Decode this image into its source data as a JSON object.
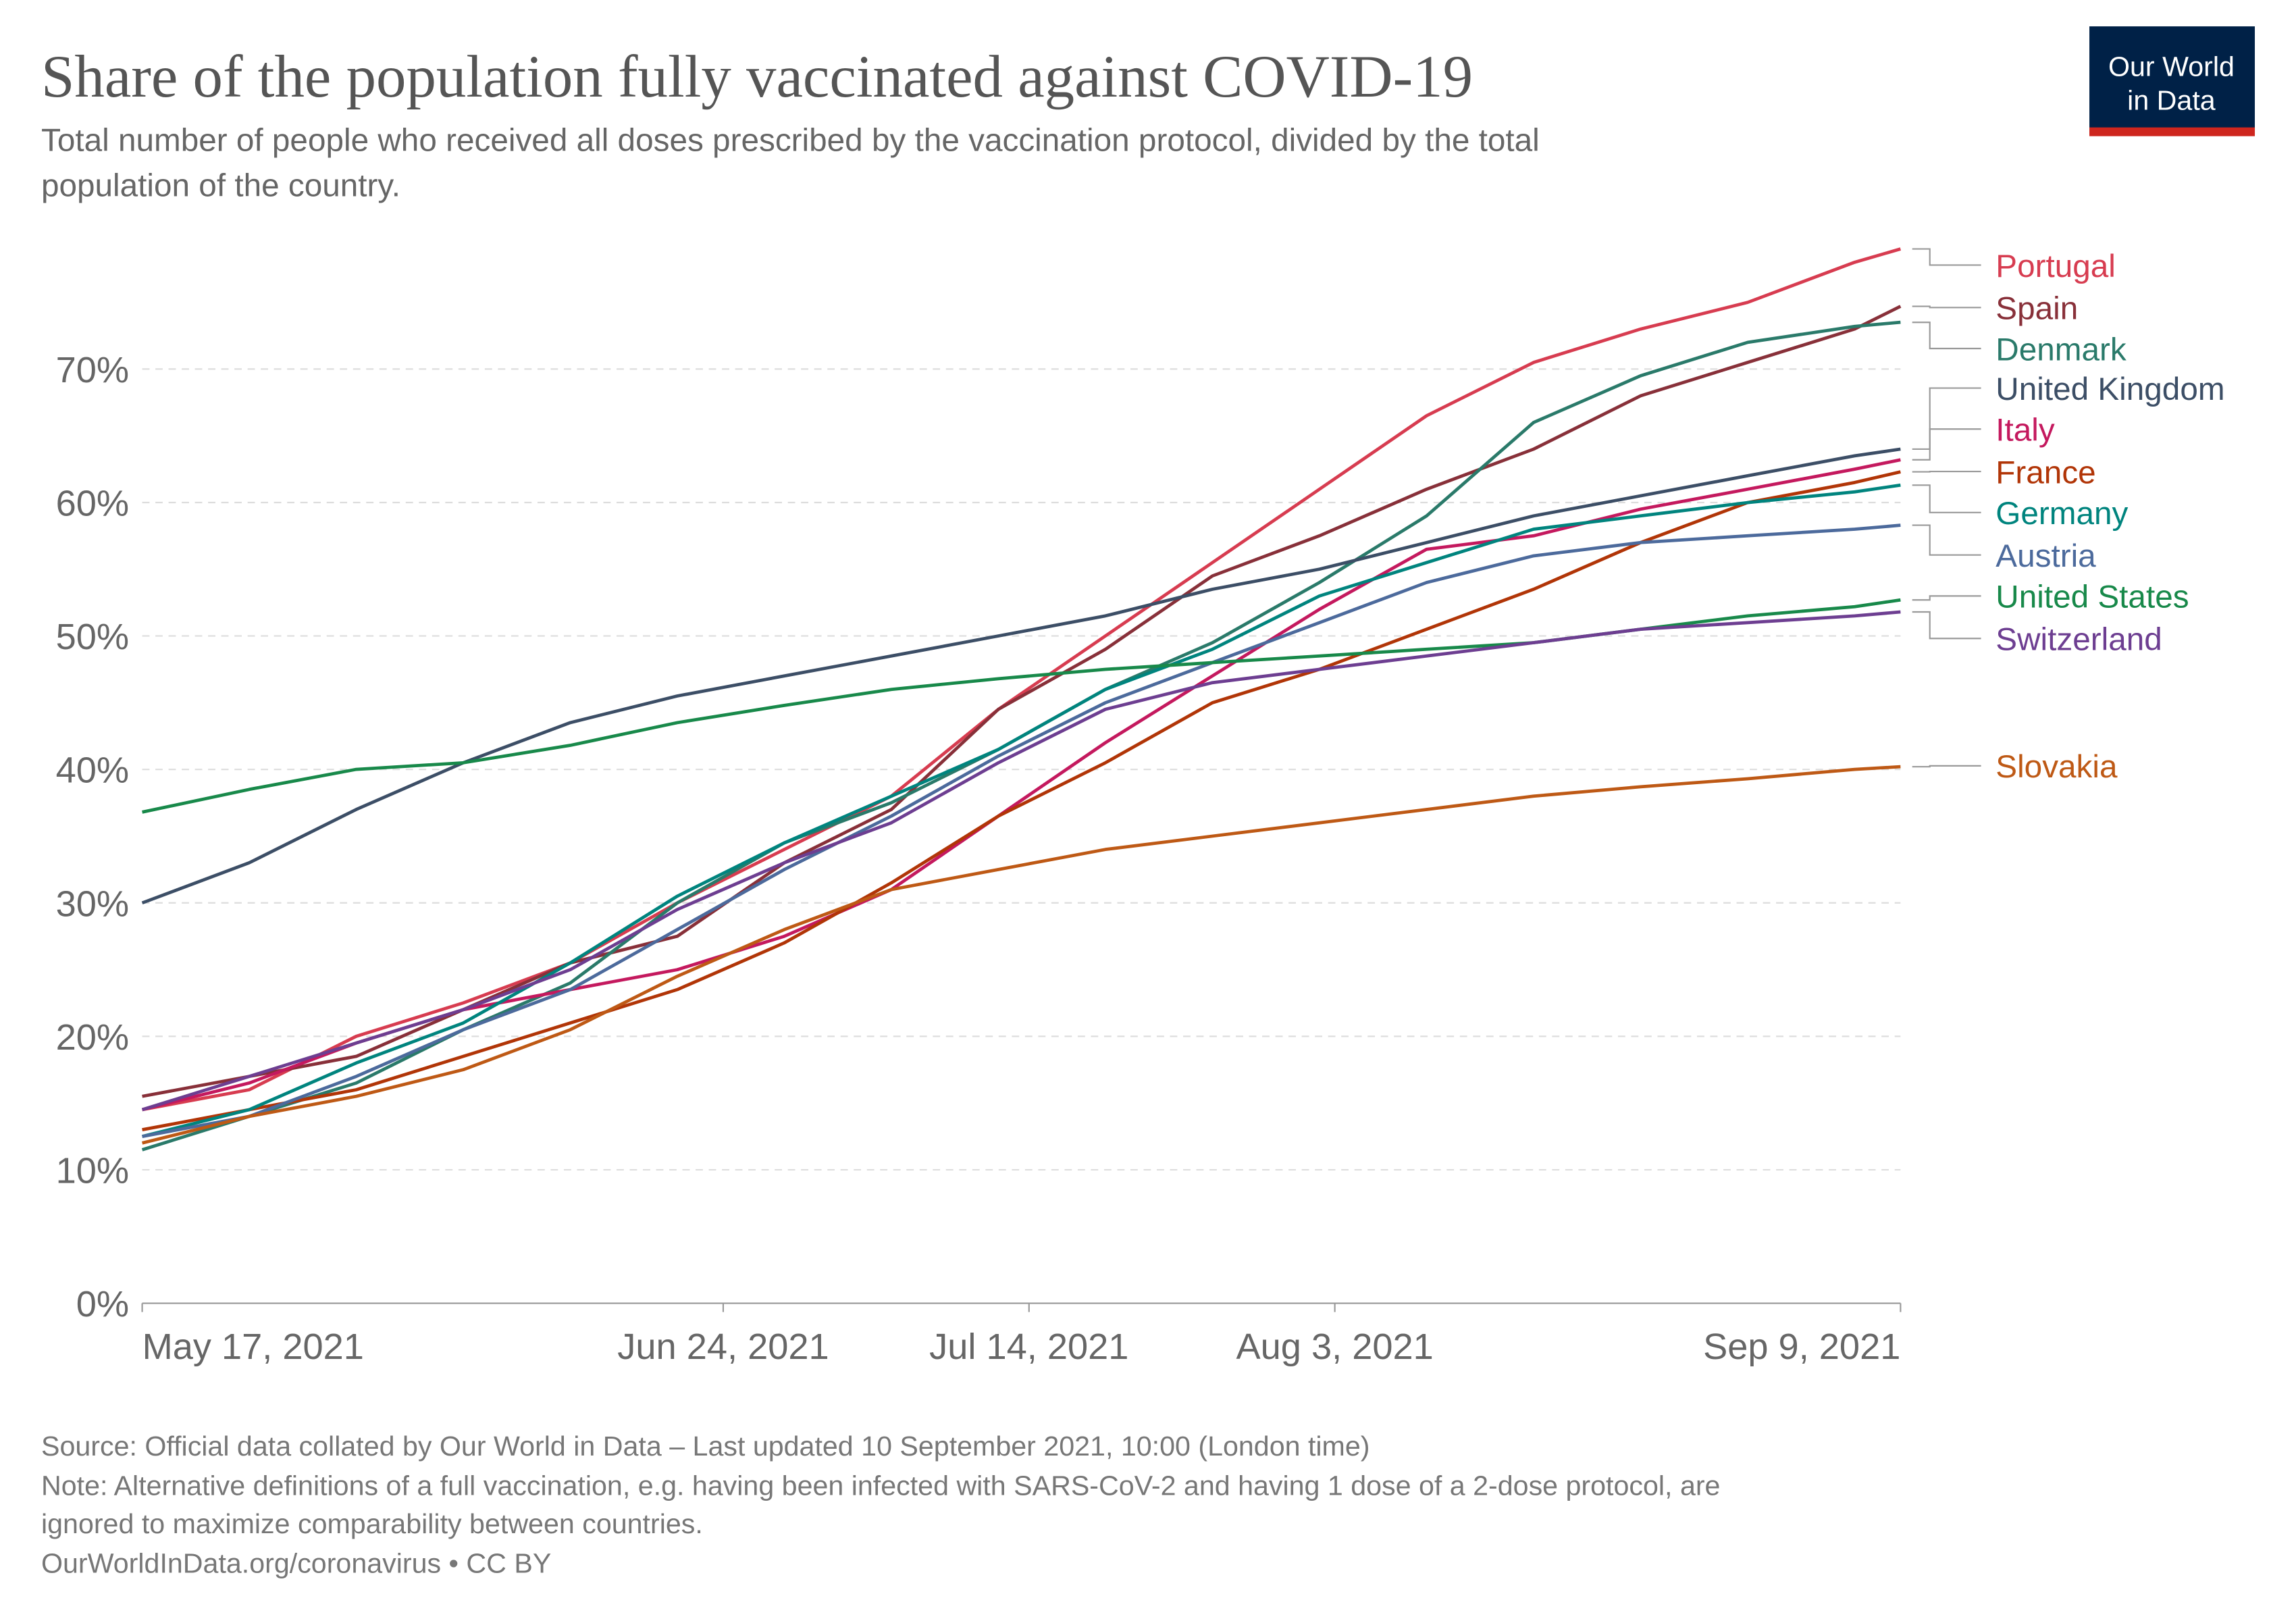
{
  "chart_data": {
    "type": "line",
    "title": "Share of the population fully vaccinated against COVID-19",
    "subtitle_lines": [
      "Total number of people who received all doses prescribed by the vaccination protocol, divided by the total",
      "population of the country."
    ],
    "logo_lines": [
      "Our World",
      "in Data"
    ],
    "source": "Source: Official data collated by Our World in Data – Last updated 10 September 2021, 10:00 (London time)",
    "note_lines": [
      "Note: Alternative definitions of a full vaccination, e.g. having been infected with SARS-CoV-2 and having 1 dose of a 2-dose protocol, are",
      "ignored to maximize comparability between countries."
    ],
    "footer": "OurWorldInData.org/coronavirus • CC BY",
    "x": [
      "2021-05-17",
      "2021-05-24",
      "2021-05-31",
      "2021-06-07",
      "2021-06-14",
      "2021-06-21",
      "2021-06-28",
      "2021-07-05",
      "2021-07-12",
      "2021-07-19",
      "2021-07-26",
      "2021-08-02",
      "2021-08-09",
      "2021-08-16",
      "2021-08-23",
      "2021-08-30",
      "2021-09-06",
      "2021-09-09"
    ],
    "xlim": [
      "2021-05-17",
      "2021-09-09"
    ],
    "xticks": [
      {
        "value": "2021-05-17",
        "label": "May 17, 2021"
      },
      {
        "value": "2021-06-24",
        "label": "Jun 24, 2021"
      },
      {
        "value": "2021-07-14",
        "label": "Jul 14, 2021"
      },
      {
        "value": "2021-08-03",
        "label": "Aug 3, 2021"
      },
      {
        "value": "2021-09-09",
        "label": "Sep 9, 2021"
      }
    ],
    "ylim": [
      0,
      79
    ],
    "yticks": [
      {
        "value": 0,
        "label": "0%"
      },
      {
        "value": 10,
        "label": "10%"
      },
      {
        "value": 20,
        "label": "20%"
      },
      {
        "value": 30,
        "label": "30%"
      },
      {
        "value": 40,
        "label": "40%"
      },
      {
        "value": 50,
        "label": "50%"
      },
      {
        "value": 60,
        "label": "60%"
      },
      {
        "value": 70,
        "label": "70%"
      }
    ],
    "grid": true,
    "series": [
      {
        "name": "Portugal",
        "color": "#d73c50",
        "values": [
          14.5,
          16,
          20,
          22.5,
          25.5,
          30,
          34,
          38,
          44.5,
          50,
          55.5,
          61,
          66.5,
          70.5,
          73,
          75,
          78,
          79
        ]
      },
      {
        "name": "Spain",
        "color": "#883039",
        "values": [
          15.5,
          17,
          18.5,
          22,
          25.5,
          27.5,
          33,
          37,
          44.5,
          49,
          54.5,
          57.5,
          61,
          64,
          68,
          70.5,
          73,
          74.7
        ]
      },
      {
        "name": "Denmark",
        "color": "#2a7a6a",
        "values": [
          11.5,
          14,
          16.5,
          20.5,
          24,
          30,
          34.5,
          37.5,
          41.5,
          46,
          49.5,
          54,
          59,
          66,
          69.5,
          72,
          73.2,
          73.5
        ]
      },
      {
        "name": "United Kingdom",
        "color": "#3c4e66",
        "values": [
          30,
          33,
          37,
          40.5,
          43.5,
          45.5,
          47,
          48.5,
          50,
          51.5,
          53.5,
          55,
          57,
          59,
          60.5,
          62,
          63.5,
          64
        ]
      },
      {
        "name": "Italy",
        "color": "#c4195e",
        "values": [
          14.5,
          16.5,
          19.5,
          22,
          23.5,
          25,
          27.5,
          31,
          36.5,
          42,
          47,
          52,
          56.5,
          57.5,
          59.5,
          61,
          62.5,
          63.2
        ]
      },
      {
        "name": "France",
        "color": "#b13507",
        "values": [
          13,
          14.5,
          16,
          18.5,
          21,
          23.5,
          27,
          31.5,
          36.5,
          40.5,
          45,
          47.5,
          50.5,
          53.5,
          57,
          60,
          61.5,
          62.3
        ]
      },
      {
        "name": "Germany",
        "color": "#00847e",
        "values": [
          12.5,
          14.5,
          18,
          21,
          25.5,
          30.5,
          34.5,
          38,
          41.5,
          46,
          49,
          53,
          55.5,
          58,
          59,
          60,
          60.8,
          61.3
        ]
      },
      {
        "name": "Austria",
        "color": "#4c6a9c",
        "values": [
          12.5,
          14,
          17,
          20.5,
          23.5,
          28,
          32.5,
          36.5,
          41,
          45,
          48,
          51,
          54,
          56,
          57,
          57.5,
          58,
          58.3
        ]
      },
      {
        "name": "United States",
        "color": "#18894a",
        "values": [
          36.8,
          38.5,
          40,
          40.5,
          41.8,
          43.5,
          44.8,
          46,
          46.8,
          47.5,
          48,
          48.5,
          49,
          49.5,
          50.5,
          51.5,
          52.2,
          52.7
        ]
      },
      {
        "name": "Switzerland",
        "color": "#6d3e91",
        "values": [
          14.5,
          17,
          19.5,
          22,
          25,
          29.5,
          33,
          36,
          40.5,
          44.5,
          46.5,
          47.5,
          48.5,
          49.5,
          50.5,
          51,
          51.5,
          51.8
        ]
      },
      {
        "name": "Slovakia",
        "color": "#be5915",
        "values": [
          12,
          14,
          15.5,
          17.5,
          20.5,
          24.5,
          28,
          31,
          32.5,
          34,
          35,
          36,
          37,
          38,
          38.7,
          39.3,
          40,
          40.2
        ]
      }
    ]
  }
}
